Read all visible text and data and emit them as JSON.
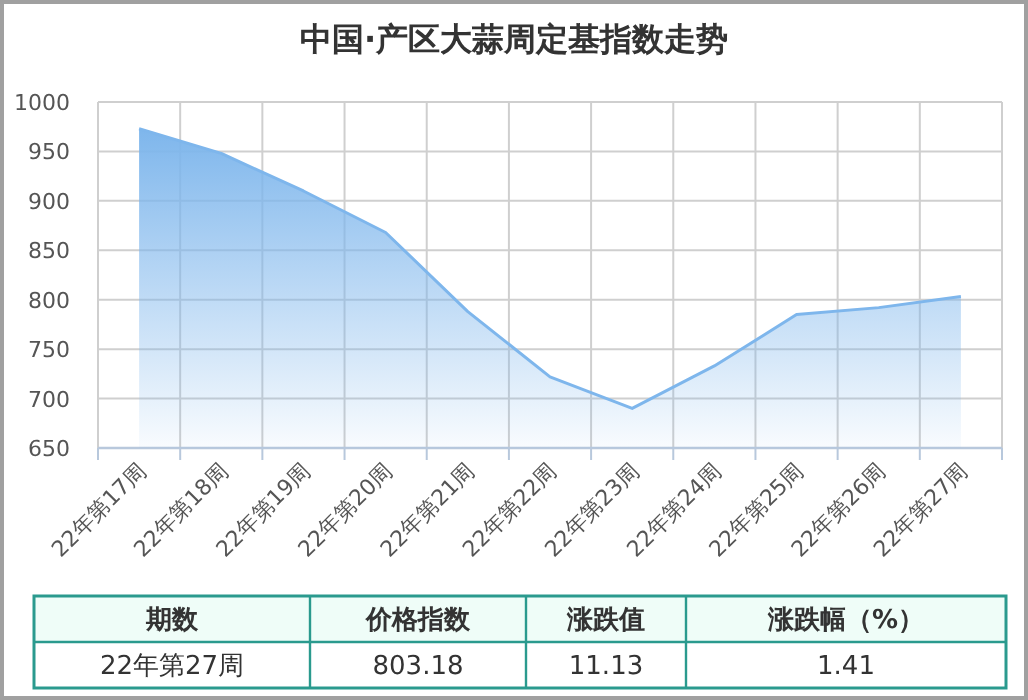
{
  "chart_data": {
    "type": "area",
    "title": "中国·产区大蒜周定基指数走势",
    "categories": [
      "22年第17周",
      "22年第18周",
      "22年第19周",
      "22年第20周",
      "22年第21周",
      "22年第22周",
      "22年第23周",
      "22年第24周",
      "22年第25周",
      "22年第26周",
      "22年第27周"
    ],
    "values": [
      973,
      948,
      910,
      868,
      788,
      722,
      690,
      733,
      785,
      792,
      803.18
    ],
    "color": "#7eb6ec",
    "ylim": [
      650,
      1000
    ],
    "yticks": [
      650,
      700,
      750,
      800,
      850,
      900,
      950,
      1000
    ],
    "grid": true,
    "annotations": [
      "期数",
      "价格指数",
      "涨跌值",
      "涨跌幅（%）",
      "22年第27周",
      "803.18",
      "11.13",
      "1.41"
    ]
  }
}
